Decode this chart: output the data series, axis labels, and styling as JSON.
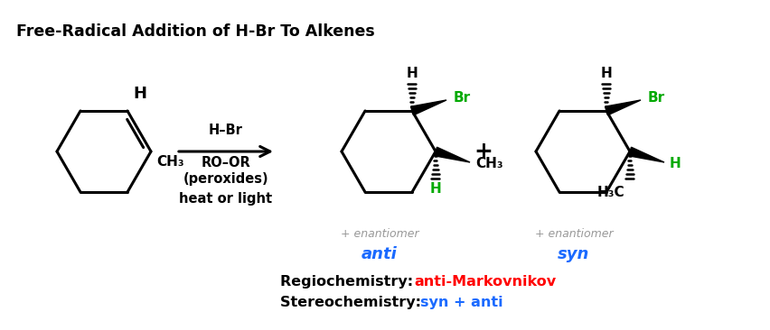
{
  "title": "Free-Radical Addition of H-Br To Alkenes",
  "title_fontsize": 12,
  "bg_color": "#ffffff",
  "reagent_line1": "H–Br",
  "reagent_line2": "RO–OR",
  "reagent_line3": "(peroxides)",
  "reagent_line4": "heat or light",
  "plus_sign": "+",
  "enantiomer1": "+ enantiomer",
  "enantiomer2": "+ enantiomer",
  "label_anti": "anti",
  "label_syn": "syn",
  "regio_label": "Regiochemistry: ",
  "regio_value": "anti-Markovnikov",
  "stereo_label": "Stereochemistry: ",
  "stereo_value": "syn + anti",
  "regio_color": "#ff0000",
  "stereo_color": "#1a6aff",
  "black": "#000000",
  "green": "#00aa00",
  "blue": "#1a6aff",
  "gray": "#999999"
}
